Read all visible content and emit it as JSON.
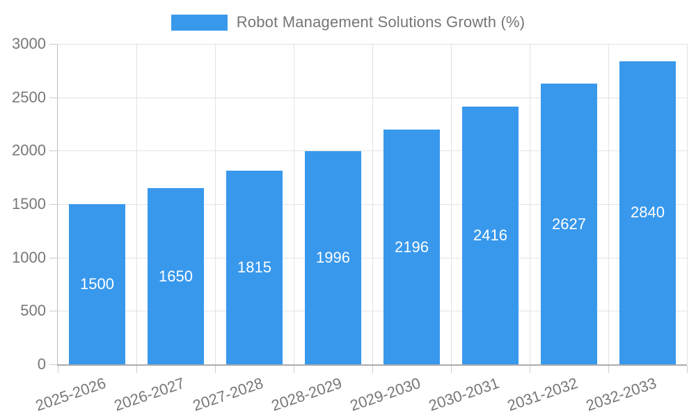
{
  "chart_data": {
    "type": "bar",
    "title": "",
    "xlabel": "",
    "ylabel": "",
    "legend": {
      "position": "top",
      "label": "Robot Management Solutions Growth (%)"
    },
    "categories": [
      "2025-2026",
      "2026-2027",
      "2027-2028",
      "2028-2029",
      "2029-2030",
      "2030-2031",
      "2031-2032",
      "2032-2033"
    ],
    "series": [
      {
        "name": "Robot Management Solutions Growth (%)",
        "values": [
          1500,
          1650,
          1815,
          1996,
          2196,
          2416,
          2627,
          2840
        ]
      }
    ],
    "value_labels_shown": true,
    "ylim": [
      0,
      3000
    ],
    "yticks": [
      0,
      500,
      1000,
      1500,
      2000,
      2500,
      3000
    ],
    "grid": true,
    "colors": {
      "bar": "#3898EC",
      "grid": "#E3E3E3",
      "tick_mark": "#CCCCCC",
      "axis_y": "#BDBDBD",
      "axis_x": "#ABABAB",
      "tick_text": "#777777",
      "legend_text": "#757575",
      "bar_label_text": "#FFFFFF"
    }
  }
}
